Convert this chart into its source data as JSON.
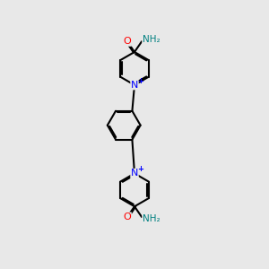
{
  "background_color": "#e8e8e8",
  "line_color": "#000000",
  "bond_width": 1.5,
  "atom_colors": {
    "N": "#0000ff",
    "O": "#ff0000",
    "H_amide": "#008080",
    "C": "#000000"
  },
  "figsize": [
    3.0,
    3.0
  ],
  "dpi": 100,
  "xlim": [
    0,
    10
  ],
  "ylim": [
    0,
    20
  ]
}
